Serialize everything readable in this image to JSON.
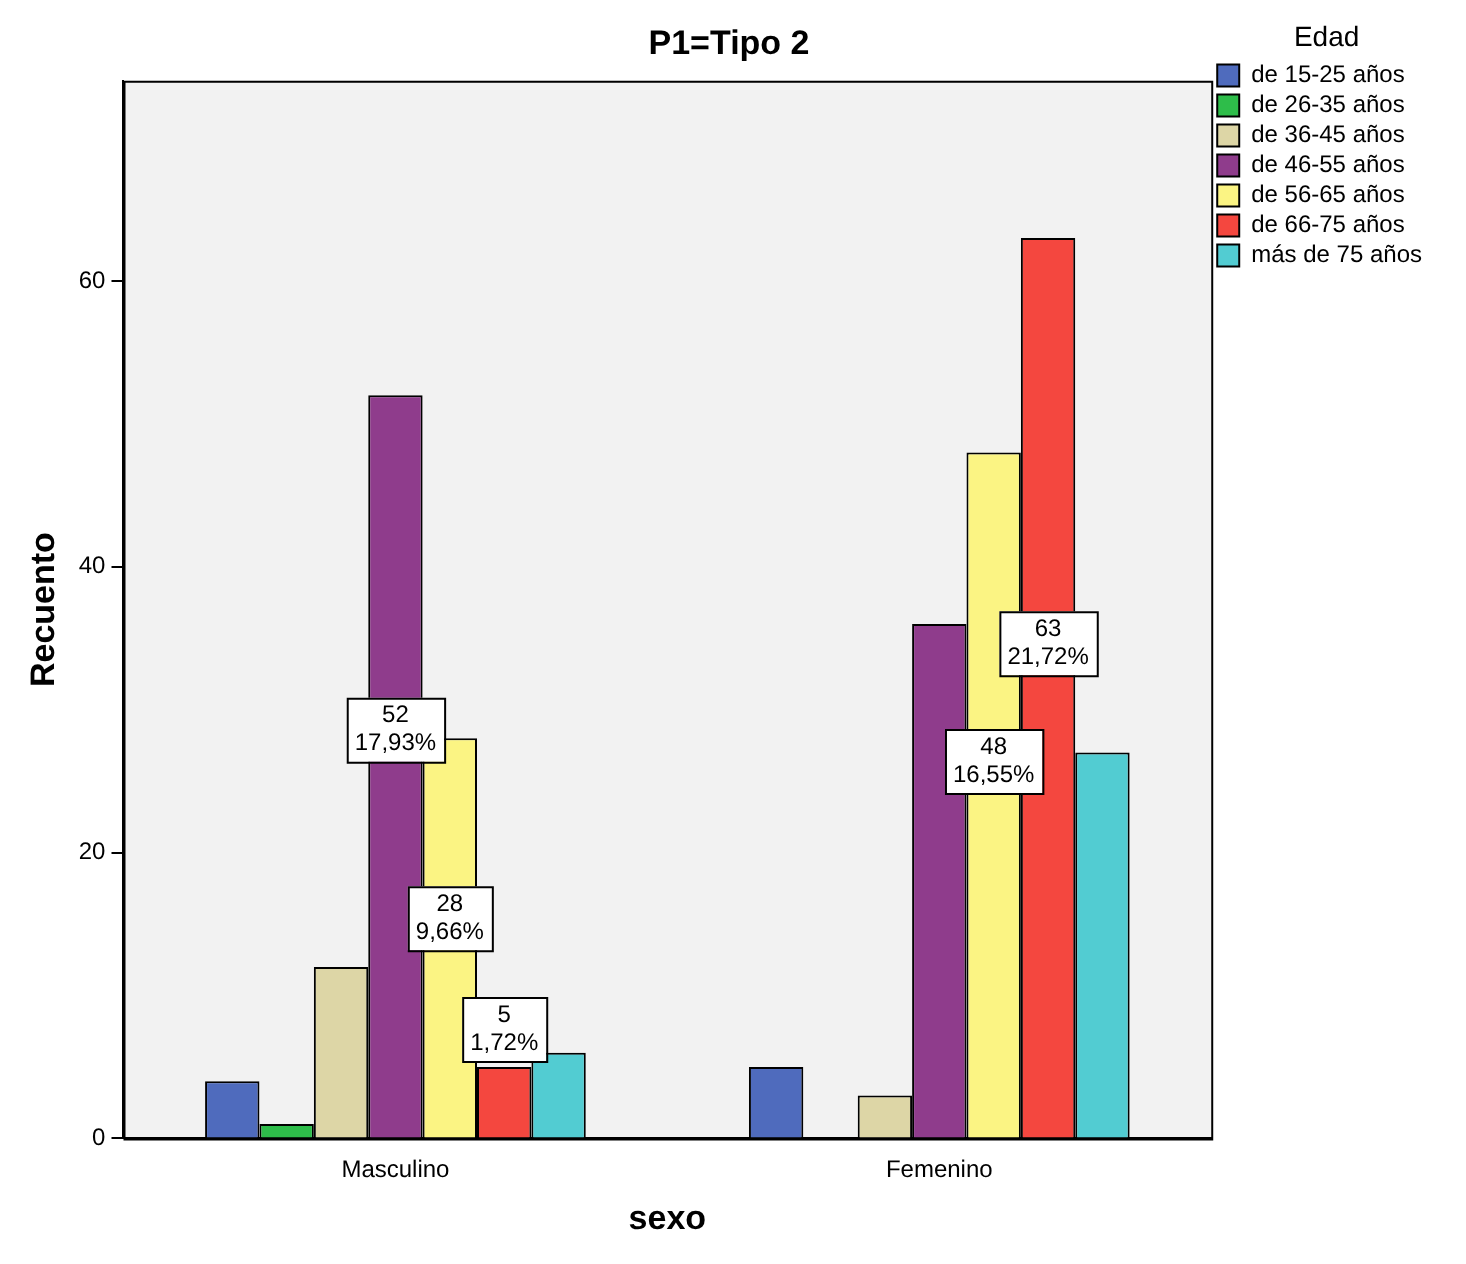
{
  "chart_data": {
    "type": "bar",
    "title": "P1=Tipo 2",
    "xlabel": "sexo",
    "ylabel": "Recuento",
    "legend_title": "Edad",
    "legend": "top right",
    "categories": [
      "Masculino",
      "Femenino"
    ],
    "series": [
      {
        "name": "de 15-25 años",
        "color": "#4f6bbd",
        "values": [
          4,
          5
        ]
      },
      {
        "name": "de 26-35 años",
        "color": "#2ebd4a",
        "values": [
          1,
          null
        ]
      },
      {
        "name": "de 36-45 años",
        "color": "#ddd6a6",
        "values": [
          12,
          3
        ]
      },
      {
        "name": "de 46-55 años",
        "color": "#8f3c8c",
        "values": [
          52,
          36
        ],
        "value_labels": [
          "52\n17,93%",
          null
        ]
      },
      {
        "name": "de 56-65 años",
        "color": "#fbf483",
        "values": [
          28,
          48
        ],
        "value_labels": [
          "28\n9,66%",
          "48\n16,55%"
        ]
      },
      {
        "name": "de 66-75 años",
        "color": "#f4473f",
        "values": [
          5,
          63
        ],
        "value_labels": [
          "5\n1,72%",
          "63\n21,72%"
        ]
      },
      {
        "name": "más de 75 años",
        "color": "#52ccd2",
        "values": [
          6,
          27
        ]
      }
    ],
    "ylim": [
      0,
      74
    ],
    "yticks": [
      0,
      20,
      40,
      60
    ],
    "grid": false
  }
}
